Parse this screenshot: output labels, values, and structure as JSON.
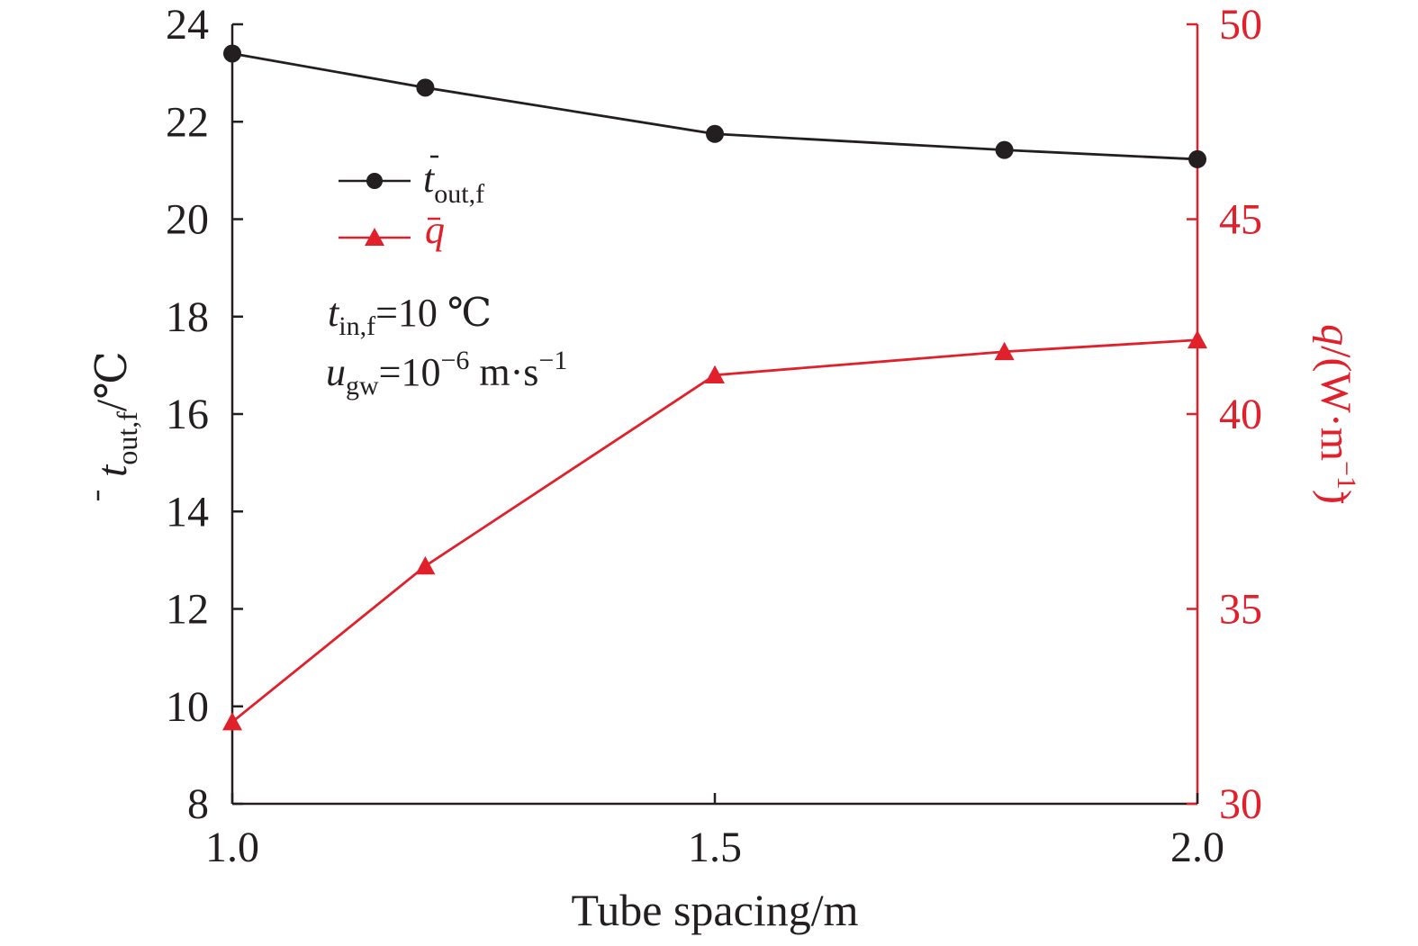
{
  "chart_data": {
    "type": "line",
    "xlabel": "Tube spacing/m",
    "xlim": [
      1.0,
      2.0
    ],
    "xticks": [
      "1.0",
      "1.5",
      "2.0"
    ],
    "x": [
      1.0,
      1.2,
      1.5,
      1.8,
      2.0
    ],
    "left_axis": {
      "label_main": "t",
      "label_sub": "out,f",
      "label_tail": "/℃",
      "ylim": [
        8,
        24
      ],
      "ticks": [
        8,
        10,
        12,
        14,
        16,
        18,
        20,
        22,
        24
      ],
      "color": "#231f20"
    },
    "right_axis": {
      "label_main": "q",
      "label_tail": "/(W·m",
      "label_exp": "−1",
      "label_close": ")",
      "ylim": [
        30,
        50
      ],
      "ticks": [
        30,
        35,
        40,
        45,
        50
      ],
      "color": "#e0202a"
    },
    "series": [
      {
        "name_main": "t",
        "name_sub": "out,f",
        "axis": "left",
        "marker": "circle",
        "color": "#231f20",
        "values": [
          23.4,
          22.7,
          21.75,
          21.42,
          21.23
        ]
      },
      {
        "name_main": "q",
        "axis": "right",
        "marker": "triangle",
        "color": "#e0202a",
        "values": [
          32.1,
          36.1,
          41.0,
          41.6,
          41.9
        ]
      }
    ],
    "annotations": {
      "line1_var": "t",
      "line1_sub": "in,f",
      "line1_rest": "=10 ℃",
      "line2_var": "u",
      "line2_sub": "gw",
      "line2_mid": "=10",
      "line2_exp": "−6",
      "line2_unit": " m·s",
      "line2_unit_exp": "−1"
    },
    "grid": false,
    "legend_position": "top-left"
  }
}
